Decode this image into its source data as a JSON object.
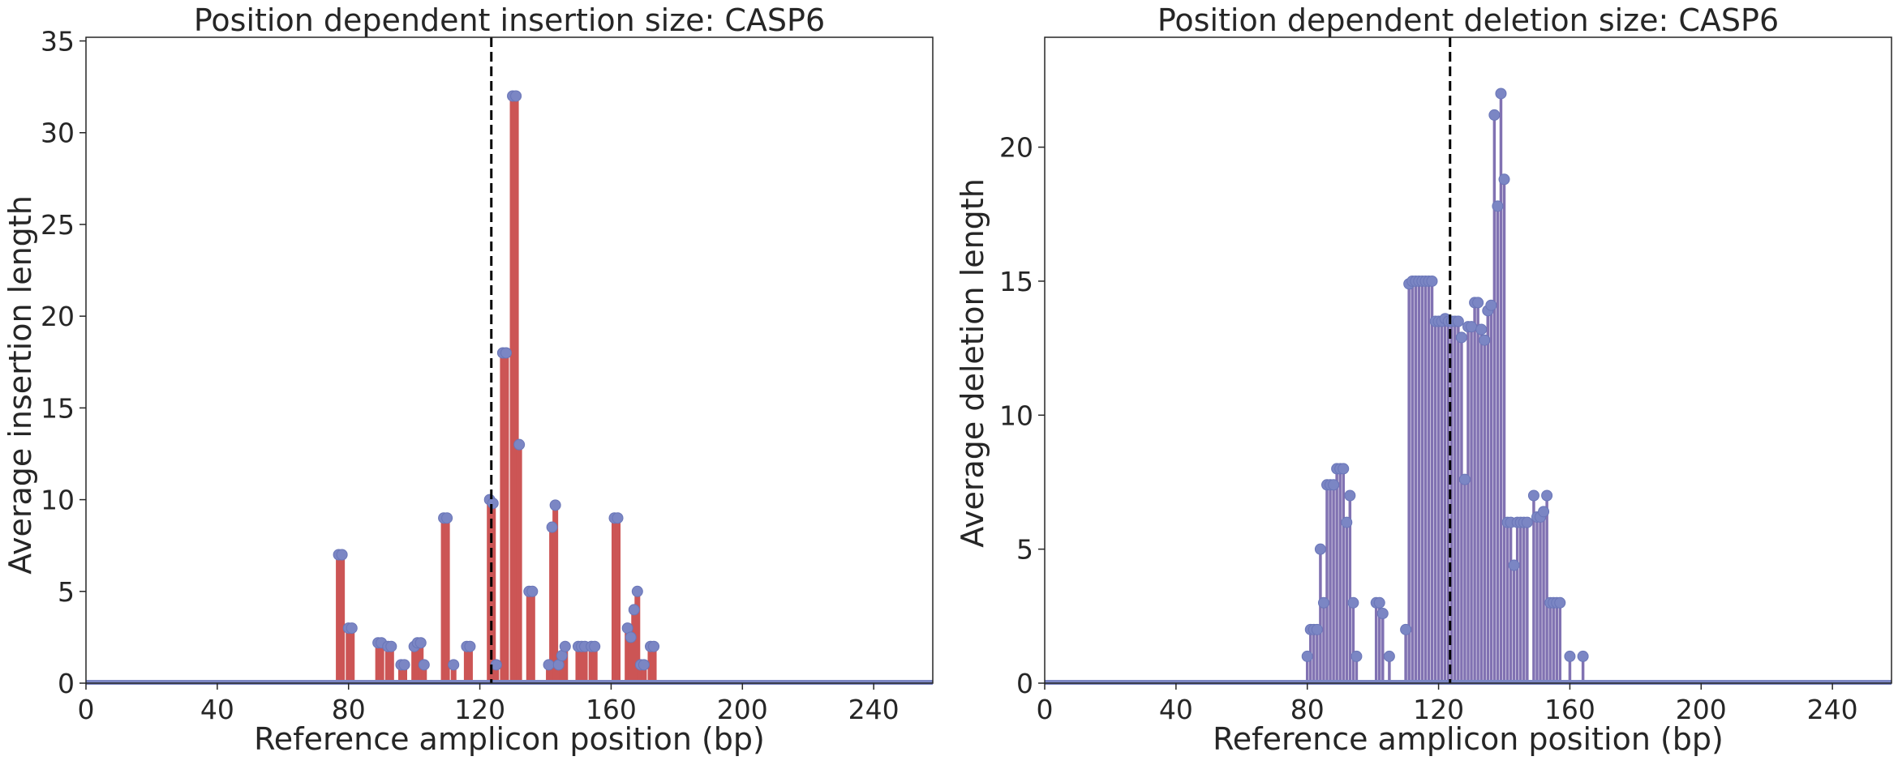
{
  "chart_data": [
    {
      "type": "stem",
      "title": "Position dependent insertion size: CASP6",
      "xlabel": "Reference amplicon position (bp)",
      "ylabel": "Average insertion length",
      "xlim": [
        0,
        258
      ],
      "ylim": [
        0,
        35.2
      ],
      "xticks": [
        0,
        40,
        80,
        120,
        160,
        200,
        240
      ],
      "yticks": [
        0,
        5,
        10,
        15,
        20,
        25,
        30,
        35
      ],
      "cut_site": 123.5,
      "grid": false,
      "colors": {
        "stem": "#cc5555",
        "marker": "#7b86c4",
        "baseline": "#7b86c4",
        "cut_line": "#000000"
      },
      "points": [
        [
          77,
          7
        ],
        [
          78,
          7
        ],
        [
          80,
          3
        ],
        [
          81,
          3
        ],
        [
          89,
          2.2
        ],
        [
          90,
          2.2
        ],
        [
          92,
          2
        ],
        [
          93,
          2
        ],
        [
          96,
          1
        ],
        [
          97,
          1
        ],
        [
          100,
          2
        ],
        [
          101,
          2.2
        ],
        [
          102,
          2.2
        ],
        [
          103,
          1
        ],
        [
          109,
          9
        ],
        [
          110,
          9
        ],
        [
          112,
          1
        ],
        [
          116,
          2
        ],
        [
          117,
          2
        ],
        [
          123,
          10
        ],
        [
          124,
          9.8
        ],
        [
          125,
          1
        ],
        [
          127,
          18
        ],
        [
          128,
          18
        ],
        [
          130,
          32
        ],
        [
          131,
          32
        ],
        [
          132,
          13
        ],
        [
          135,
          5
        ],
        [
          136,
          5
        ],
        [
          141,
          1
        ],
        [
          142,
          8.5
        ],
        [
          143,
          9.7
        ],
        [
          144,
          1
        ],
        [
          145,
          1.5
        ],
        [
          146,
          2
        ],
        [
          150,
          2
        ],
        [
          151,
          2
        ],
        [
          152,
          2
        ],
        [
          154,
          2
        ],
        [
          155,
          2
        ],
        [
          161,
          9
        ],
        [
          162,
          9
        ],
        [
          165,
          3
        ],
        [
          166,
          2.5
        ],
        [
          167,
          4
        ],
        [
          168,
          5
        ],
        [
          169,
          1
        ],
        [
          170,
          1
        ],
        [
          172,
          2
        ],
        [
          173,
          2
        ]
      ]
    },
    {
      "type": "stem",
      "title": "Position dependent deletion size: CASP6",
      "xlabel": "Reference amplicon position (bp)",
      "ylabel": "Average deletion length",
      "xlim": [
        0,
        258
      ],
      "ylim": [
        0,
        24.1
      ],
      "xticks": [
        0,
        40,
        80,
        120,
        160,
        200,
        240
      ],
      "yticks": [
        0,
        5,
        10,
        15,
        20
      ],
      "cut_site": 123.5,
      "grid": false,
      "colors": {
        "stem": "#8172b2",
        "marker": "#7b86c4",
        "baseline": "#7b86c4",
        "cut_line": "#000000"
      },
      "points": [
        [
          80,
          1
        ],
        [
          81,
          2
        ],
        [
          82,
          2
        ],
        [
          83,
          2
        ],
        [
          84,
          5
        ],
        [
          85,
          3
        ],
        [
          86,
          7.4
        ],
        [
          87,
          7.4
        ],
        [
          88,
          7.4
        ],
        [
          89,
          8
        ],
        [
          90,
          8
        ],
        [
          91,
          8
        ],
        [
          92,
          6
        ],
        [
          93,
          7
        ],
        [
          94,
          3
        ],
        [
          95,
          1
        ],
        [
          101,
          3
        ],
        [
          102,
          3
        ],
        [
          103,
          2.6
        ],
        [
          105,
          1
        ],
        [
          110,
          2
        ],
        [
          111,
          14.9
        ],
        [
          112,
          15
        ],
        [
          113,
          15
        ],
        [
          114,
          15
        ],
        [
          115,
          15
        ],
        [
          116,
          15
        ],
        [
          117,
          15
        ],
        [
          118,
          15
        ],
        [
          119,
          13.5
        ],
        [
          120,
          13.5
        ],
        [
          121,
          13.5
        ],
        [
          122,
          13.6
        ],
        [
          123,
          13.5
        ],
        [
          124,
          13.5
        ],
        [
          125,
          13.5
        ],
        [
          126,
          13.5
        ],
        [
          127,
          12.9
        ],
        [
          128,
          7.6
        ],
        [
          129,
          13.3
        ],
        [
          130,
          13.3
        ],
        [
          131,
          14.2
        ],
        [
          132,
          14.2
        ],
        [
          133,
          13.2
        ],
        [
          134,
          12.8
        ],
        [
          135,
          13.9
        ],
        [
          136,
          14.1
        ],
        [
          137,
          21.2
        ],
        [
          138,
          17.8
        ],
        [
          139,
          22
        ],
        [
          140,
          18.8
        ],
        [
          141,
          6
        ],
        [
          142,
          6
        ],
        [
          143,
          4.4
        ],
        [
          144,
          6
        ],
        [
          145,
          6
        ],
        [
          146,
          6
        ],
        [
          147,
          6
        ],
        [
          149,
          7
        ],
        [
          150,
          6.2
        ],
        [
          151,
          6.2
        ],
        [
          152,
          6.4
        ],
        [
          153,
          7
        ],
        [
          154,
          3
        ],
        [
          155,
          3
        ],
        [
          156,
          3
        ],
        [
          157,
          3
        ],
        [
          160,
          1
        ],
        [
          164,
          1
        ]
      ]
    }
  ]
}
